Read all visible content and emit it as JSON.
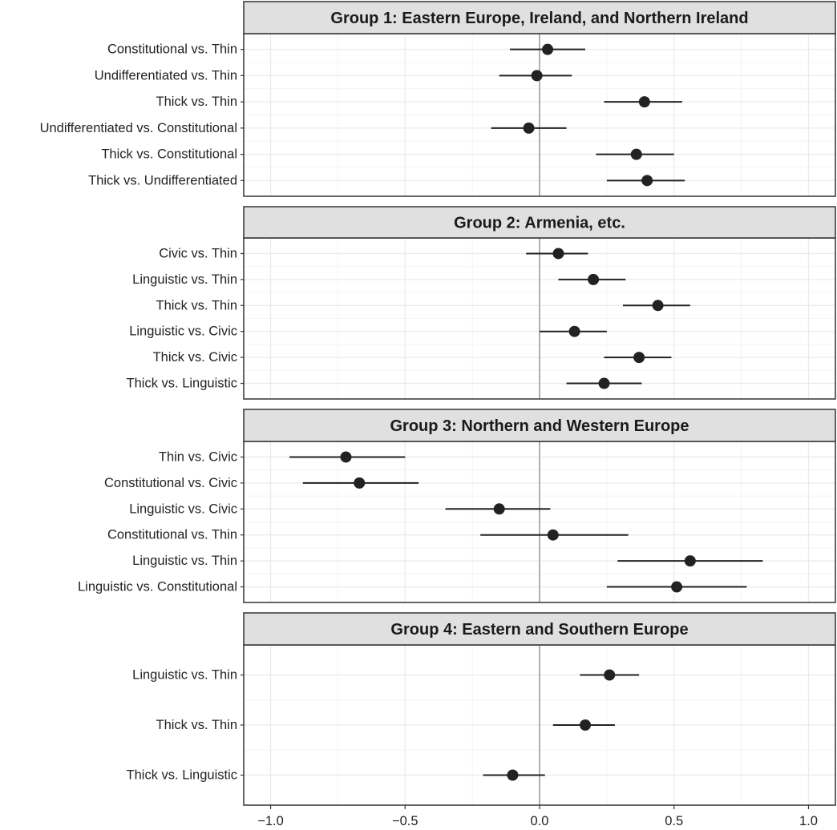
{
  "chart_data": {
    "type": "forest",
    "xlim": [
      -1.1,
      1.1
    ],
    "x_ticks": [
      -1.0,
      -0.5,
      0.0,
      0.5,
      1.0
    ],
    "x_tick_labels": [
      "−1.0",
      "−0.5",
      "0.0",
      "0.5",
      "1.0"
    ],
    "reference_line": 0,
    "grid": true,
    "colors": {
      "point": "#222222",
      "interval": "#222222",
      "strip_fill": "#e0e0e0",
      "panel_border": "#333333",
      "grid_major": "#ebebeb",
      "grid_minor": "#f4f4f4",
      "zero_line": "#b0b0b0"
    },
    "panels": [
      {
        "title": "Group 1: Eastern Europe, Ireland, and Northern Ireland",
        "rows": [
          {
            "label": "Constitutional vs. Thin",
            "estimate": 0.03,
            "lower": -0.11,
            "upper": 0.17
          },
          {
            "label": "Undifferentiated vs. Thin",
            "estimate": -0.01,
            "lower": -0.15,
            "upper": 0.12
          },
          {
            "label": "Thick vs. Thin",
            "estimate": 0.39,
            "lower": 0.24,
            "upper": 0.53
          },
          {
            "label": "Undifferentiated vs. Constitutional",
            "estimate": -0.04,
            "lower": -0.18,
            "upper": 0.1
          },
          {
            "label": "Thick vs. Constitutional",
            "estimate": 0.36,
            "lower": 0.21,
            "upper": 0.5
          },
          {
            "label": "Thick vs. Undifferentiated",
            "estimate": 0.4,
            "lower": 0.25,
            "upper": 0.54
          }
        ]
      },
      {
        "title": "Group 2: Armenia, etc.",
        "rows": [
          {
            "label": "Civic vs. Thin",
            "estimate": 0.07,
            "lower": -0.05,
            "upper": 0.18
          },
          {
            "label": "Linguistic vs. Thin",
            "estimate": 0.2,
            "lower": 0.07,
            "upper": 0.32
          },
          {
            "label": "Thick vs. Thin",
            "estimate": 0.44,
            "lower": 0.31,
            "upper": 0.56
          },
          {
            "label": "Linguistic vs. Civic",
            "estimate": 0.13,
            "lower": 0.0,
            "upper": 0.25
          },
          {
            "label": "Thick vs. Civic",
            "estimate": 0.37,
            "lower": 0.24,
            "upper": 0.49
          },
          {
            "label": "Thick vs. Linguistic",
            "estimate": 0.24,
            "lower": 0.1,
            "upper": 0.38
          }
        ]
      },
      {
        "title": "Group 3: Northern and Western Europe",
        "rows": [
          {
            "label": "Thin vs. Civic",
            "estimate": -0.72,
            "lower": -0.93,
            "upper": -0.5
          },
          {
            "label": "Constitutional vs. Civic",
            "estimate": -0.67,
            "lower": -0.88,
            "upper": -0.45
          },
          {
            "label": "Linguistic vs. Civic",
            "estimate": -0.15,
            "lower": -0.35,
            "upper": 0.04
          },
          {
            "label": "Constitutional vs. Thin",
            "estimate": 0.05,
            "lower": -0.22,
            "upper": 0.33
          },
          {
            "label": "Linguistic vs. Thin",
            "estimate": 0.56,
            "lower": 0.29,
            "upper": 0.83
          },
          {
            "label": "Linguistic vs. Constitutional",
            "estimate": 0.51,
            "lower": 0.25,
            "upper": 0.77
          }
        ]
      },
      {
        "title": "Group 4: Eastern and Southern Europe",
        "rows": [
          {
            "label": "Linguistic vs. Thin",
            "estimate": 0.26,
            "lower": 0.15,
            "upper": 0.37
          },
          {
            "label": "Thick vs. Thin",
            "estimate": 0.17,
            "lower": 0.05,
            "upper": 0.28
          },
          {
            "label": "Thick vs. Linguistic",
            "estimate": -0.1,
            "lower": -0.21,
            "upper": 0.02
          }
        ]
      }
    ]
  }
}
